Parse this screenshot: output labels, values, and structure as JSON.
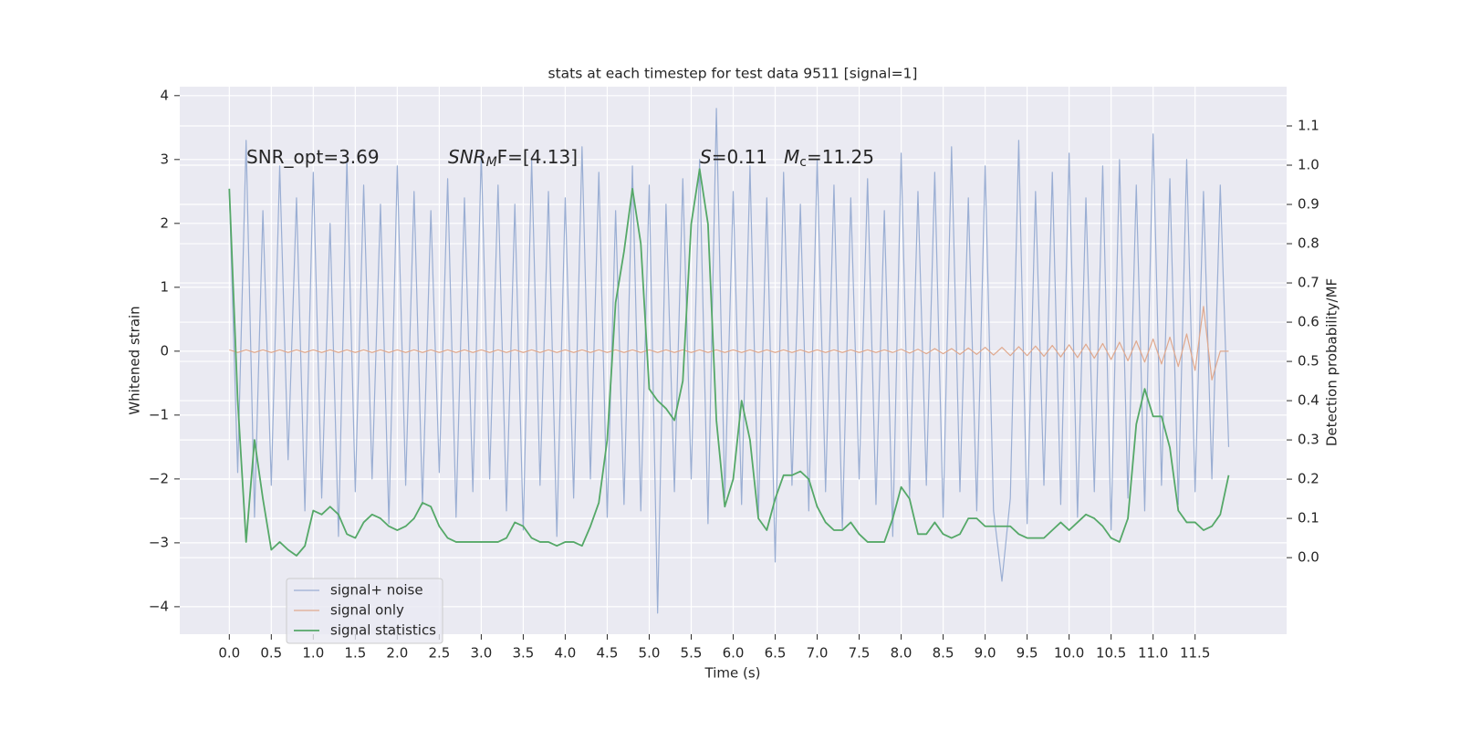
{
  "chart_data": {
    "type": "line",
    "title": "stats at each timestep for test data 9511 [signal=1]",
    "xlabel": "Time (s)",
    "ylabel": "Whitened strain",
    "y2label": "Detection probability/MF",
    "annotations": [
      [
        "SNR_opt=3.69"
      ],
      [
        "SNR",
        "M",
        "F=[4.13]"
      ],
      [
        "S",
        "=0.11"
      ],
      [
        "M",
        "c",
        "=11.25"
      ]
    ],
    "grid": true,
    "legend": "lower left",
    "xlim": [
      -0.59,
      12.59
    ],
    "ylim": [
      -4.43,
      4.14
    ],
    "y2lim": [
      -0.195,
      1.2
    ],
    "xticks": [
      {
        "value": 0,
        "label": "0.0"
      },
      0.5,
      {
        "value": 1,
        "label": "1.0"
      },
      1.5,
      {
        "value": 2,
        "label": "2.0"
      },
      2.5,
      {
        "value": 3,
        "label": "3.0"
      },
      3.5,
      {
        "value": 4,
        "label": "4.0"
      },
      4.5,
      {
        "value": 5,
        "label": "5.0"
      },
      5.5,
      {
        "value": 6,
        "label": "6.0"
      },
      6.5,
      {
        "value": 7,
        "label": "7.0"
      },
      7.5,
      {
        "value": 8,
        "label": "8.0"
      },
      8.5,
      {
        "value": 9,
        "label": "9.0"
      },
      9.5,
      {
        "value": 10,
        "label": "10.0"
      },
      10.5,
      {
        "value": 11,
        "label": "11.0"
      },
      11.5
    ],
    "yticks": [
      {
        "value": -4,
        "label": "−4"
      },
      {
        "value": -3,
        "label": "−3"
      },
      {
        "value": -2,
        "label": "−2"
      },
      {
        "value": -1,
        "label": "−1"
      },
      0,
      1,
      2,
      3,
      4
    ],
    "y2ticks": [
      {
        "value": 0,
        "label": "0.0"
      },
      0.1,
      0.2,
      0.3,
      0.4,
      0.5,
      0.6,
      0.7,
      0.8,
      0.9,
      {
        "value": 1,
        "label": "1.0"
      },
      1.1
    ],
    "x": [
      0.0,
      0.1,
      0.2,
      0.3,
      0.4,
      0.5,
      0.6,
      0.7,
      0.8,
      0.9,
      1.0,
      1.1,
      1.2,
      1.3,
      1.4,
      1.5,
      1.6,
      1.7,
      1.8,
      1.9,
      2.0,
      2.1,
      2.2,
      2.3,
      2.4,
      2.5,
      2.6,
      2.7,
      2.8,
      2.9,
      3.0,
      3.1,
      3.2,
      3.3,
      3.4,
      3.5,
      3.6,
      3.7,
      3.8,
      3.9,
      4.0,
      4.1,
      4.2,
      4.3,
      4.4,
      4.5,
      4.6,
      4.7,
      4.8,
      4.9,
      5.0,
      5.1,
      5.2,
      5.3,
      5.4,
      5.5,
      5.6,
      5.7,
      5.8,
      5.9,
      6.0,
      6.1,
      6.2,
      6.3,
      6.4,
      6.5,
      6.6,
      6.7,
      6.8,
      6.9,
      7.0,
      7.1,
      7.2,
      7.3,
      7.4,
      7.5,
      7.6,
      7.7,
      7.8,
      7.9,
      8.0,
      8.1,
      8.2,
      8.3,
      8.4,
      8.5,
      8.6,
      8.7,
      8.8,
      8.9,
      9.0,
      9.1,
      9.2,
      9.3,
      9.4,
      9.5,
      9.6,
      9.7,
      9.8,
      9.9,
      10.0,
      10.1,
      10.2,
      10.3,
      10.4,
      10.5,
      10.6,
      10.7,
      10.8,
      10.9,
      11.0,
      11.1,
      11.2,
      11.3,
      11.4,
      11.5,
      11.6,
      11.7,
      11.8,
      11.9
    ],
    "series": [
      {
        "name": "signal+ noise",
        "color": "#9aaed3",
        "values": [
          2.5,
          -1.9,
          3.3,
          -2.6,
          2.2,
          -2.1,
          2.9,
          -1.7,
          2.4,
          -2.5,
          2.8,
          -2.3,
          2.0,
          -2.9,
          3.0,
          -2.2,
          2.6,
          -2.0,
          2.3,
          -2.7,
          2.9,
          -2.1,
          2.5,
          -2.4,
          2.2,
          -1.9,
          2.7,
          -2.6,
          2.4,
          -2.2,
          3.1,
          -2.0,
          2.6,
          -2.5,
          2.3,
          -2.8,
          3.0,
          -2.1,
          2.5,
          -2.9,
          2.4,
          -2.3,
          3.2,
          -2.0,
          2.8,
          -2.6,
          2.2,
          -2.4,
          2.9,
          -2.5,
          2.6,
          -4.1,
          2.3,
          -2.2,
          2.7,
          -2.0,
          3.0,
          -2.7,
          3.8,
          -2.3,
          2.5,
          -2.4,
          2.9,
          -2.6,
          2.4,
          -3.3,
          2.8,
          -2.1,
          2.3,
          -2.5,
          3.0,
          -2.2,
          2.6,
          -2.8,
          2.4,
          -2.0,
          2.7,
          -2.4,
          2.2,
          -2.9,
          3.1,
          -2.3,
          2.5,
          -2.1,
          2.8,
          -2.6,
          3.2,
          -2.2,
          2.4,
          -2.5,
          2.9,
          -2.5,
          -3.6,
          -2.3,
          3.3,
          -2.7,
          2.5,
          -2.1,
          2.8,
          -2.4,
          3.1,
          -2.6,
          2.4,
          -2.2,
          2.9,
          -2.8,
          3.0,
          -2.3,
          2.6,
          -2.5,
          3.4,
          -2.1,
          2.7,
          -2.4,
          3.0,
          -2.2,
          2.5,
          -2.0,
          2.6,
          -1.5
        ]
      },
      {
        "name": "signal only",
        "color": "#e0a98e",
        "values": [
          0.02,
          -0.02,
          0.02,
          -0.02,
          0.02,
          -0.02,
          0.02,
          -0.02,
          0.02,
          -0.02,
          0.02,
          -0.02,
          0.02,
          -0.02,
          0.02,
          -0.02,
          0.02,
          -0.02,
          0.02,
          -0.02,
          0.02,
          -0.02,
          0.02,
          -0.02,
          0.02,
          -0.02,
          0.02,
          -0.02,
          0.02,
          -0.02,
          0.02,
          -0.02,
          0.02,
          -0.02,
          0.02,
          -0.02,
          0.02,
          -0.02,
          0.02,
          -0.02,
          0.02,
          -0.02,
          0.02,
          -0.02,
          0.02,
          -0.02,
          0.02,
          -0.02,
          0.02,
          -0.02,
          0.02,
          -0.02,
          0.02,
          -0.02,
          0.02,
          -0.02,
          0.02,
          -0.02,
          0.02,
          -0.02,
          0.02,
          -0.02,
          0.02,
          -0.02,
          0.02,
          -0.02,
          0.02,
          -0.02,
          0.02,
          -0.02,
          0.02,
          -0.02,
          0.02,
          -0.02,
          0.02,
          -0.02,
          0.02,
          -0.02,
          0.02,
          -0.02,
          0.03,
          -0.03,
          0.03,
          -0.04,
          0.04,
          -0.04,
          0.04,
          -0.05,
          0.05,
          -0.05,
          0.06,
          -0.06,
          0.06,
          -0.07,
          0.07,
          -0.07,
          0.08,
          -0.08,
          0.09,
          -0.09,
          0.1,
          -0.1,
          0.11,
          -0.11,
          0.12,
          -0.13,
          0.14,
          -0.15,
          0.16,
          -0.17,
          0.19,
          -0.2,
          0.22,
          -0.24,
          0.27,
          -0.3,
          0.7,
          -0.45,
          0.0,
          0.0
        ]
      },
      {
        "name": "signal statistics",
        "color": "#55a868",
        "axis": "y2",
        "values": [
          0.94,
          0.4,
          0.04,
          0.3,
          0.15,
          0.02,
          0.04,
          0.02,
          0.005,
          0.03,
          0.12,
          0.11,
          0.13,
          0.11,
          0.06,
          0.05,
          0.09,
          0.11,
          0.1,
          0.08,
          0.07,
          0.08,
          0.1,
          0.14,
          0.13,
          0.08,
          0.05,
          0.04,
          0.04,
          0.04,
          0.04,
          0.04,
          0.04,
          0.05,
          0.09,
          0.08,
          0.05,
          0.04,
          0.04,
          0.03,
          0.04,
          0.04,
          0.03,
          0.08,
          0.14,
          0.3,
          0.65,
          0.78,
          0.94,
          0.8,
          0.43,
          0.4,
          0.38,
          0.35,
          0.45,
          0.85,
          0.99,
          0.85,
          0.35,
          0.13,
          0.2,
          0.4,
          0.3,
          0.1,
          0.07,
          0.15,
          0.21,
          0.21,
          0.22,
          0.2,
          0.13,
          0.09,
          0.07,
          0.07,
          0.09,
          0.06,
          0.04,
          0.04,
          0.04,
          0.1,
          0.18,
          0.15,
          0.06,
          0.06,
          0.09,
          0.06,
          0.05,
          0.06,
          0.1,
          0.1,
          0.08,
          0.08,
          0.08,
          0.08,
          0.06,
          0.05,
          0.05,
          0.05,
          0.07,
          0.09,
          0.07,
          0.09,
          0.11,
          0.1,
          0.08,
          0.05,
          0.04,
          0.1,
          0.34,
          0.43,
          0.36,
          0.36,
          0.28,
          0.12,
          0.09,
          0.09,
          0.07,
          0.08,
          0.11,
          0.21
        ]
      }
    ]
  }
}
